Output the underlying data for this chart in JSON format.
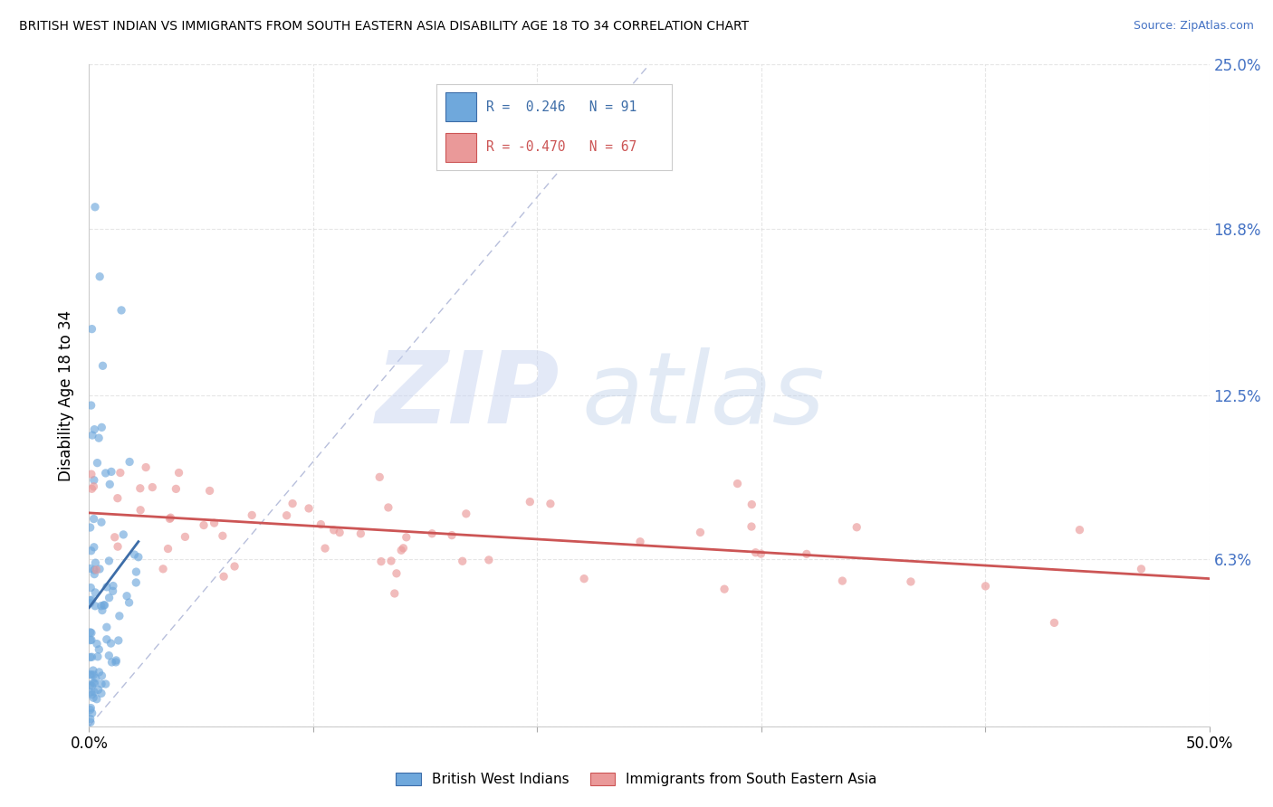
{
  "title": "BRITISH WEST INDIAN VS IMMIGRANTS FROM SOUTH EASTERN ASIA DISABILITY AGE 18 TO 34 CORRELATION CHART",
  "source": "Source: ZipAtlas.com",
  "ylabel": "Disability Age 18 to 34",
  "xlim": [
    0.0,
    0.5
  ],
  "ylim": [
    0.0,
    0.25
  ],
  "xtick_left_label": "0.0%",
  "xtick_right_label": "50.0%",
  "yticks": [
    0.0,
    0.063,
    0.125,
    0.188,
    0.25
  ],
  "yticklabels_right": [
    "",
    "6.3%",
    "12.5%",
    "18.8%",
    "25.0%"
  ],
  "right_ytick_color": "#4472c4",
  "blue_color": "#6fa8dc",
  "pink_color": "#ea9999",
  "blue_line_color": "#3d6da8",
  "pink_line_color": "#cc5555",
  "diagonal_color": "#b0b8d8",
  "blue_r": 0.246,
  "blue_n": 91,
  "pink_r": -0.47,
  "pink_n": 67,
  "watermark_zip_color": "#c8d4f0",
  "watermark_atlas_color": "#b8cce8"
}
